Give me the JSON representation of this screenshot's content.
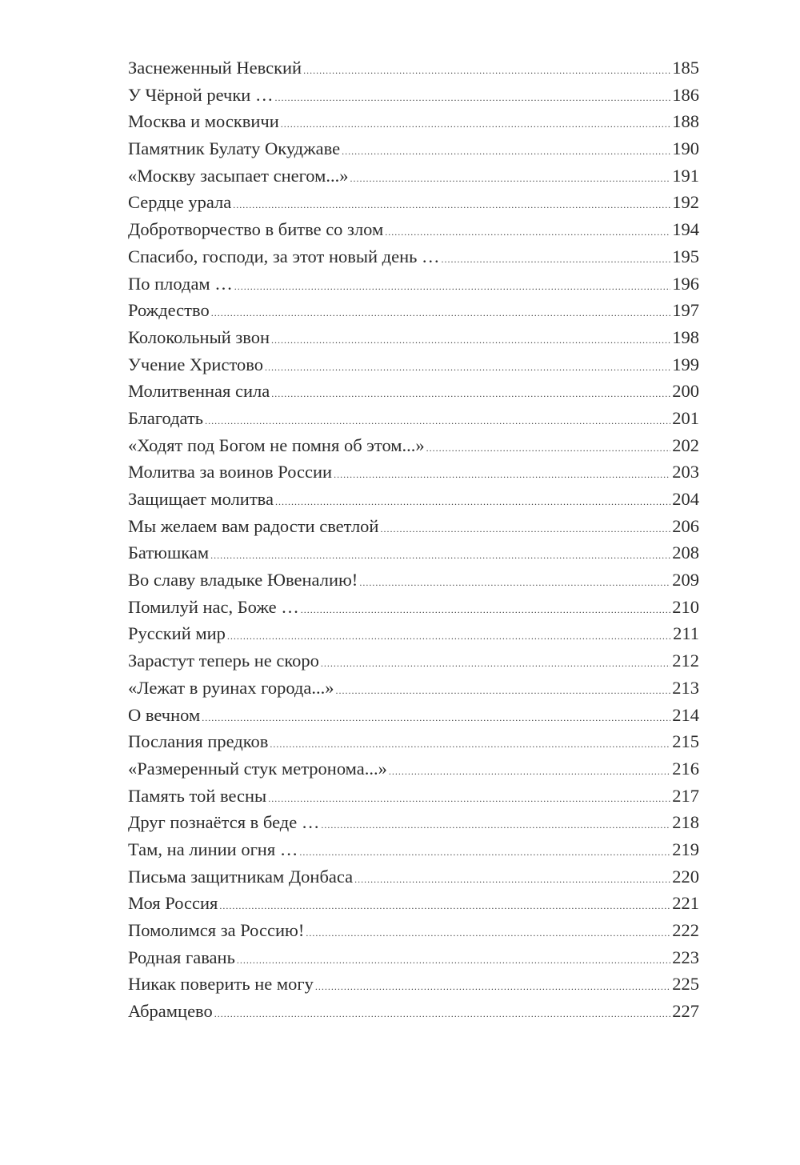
{
  "toc": {
    "entries": [
      {
        "title": "Заснеженный Невский",
        "page": "185"
      },
      {
        "title": "У Чёрной речки …",
        "page": "186"
      },
      {
        "title": "Москва и москвичи",
        "page": "188"
      },
      {
        "title": "Памятник Булату Окуджаве",
        "page": "190"
      },
      {
        "title": "«Москву засыпает снегом...»",
        "page": "191"
      },
      {
        "title": "Сердце урала",
        "page": "192"
      },
      {
        "title": "Добротворчество в битве со злом",
        "page": "194"
      },
      {
        "title": "Спасибо, господи, за этот новый день …",
        "page": "195"
      },
      {
        "title": "По плодам …",
        "page": "196"
      },
      {
        "title": "Рождество",
        "page": "197"
      },
      {
        "title": "Колокольный звон",
        "page": "198"
      },
      {
        "title": "Учение Христово",
        "page": "199"
      },
      {
        "title": "Молитвенная сила",
        "page": "200"
      },
      {
        "title": "Благодать",
        "page": "201"
      },
      {
        "title": "«Ходят под Богом не помня об этом...»",
        "page": "202"
      },
      {
        "title": "Молитва за воинов России",
        "page": "203"
      },
      {
        "title": "Защищает молитва",
        "page": "204"
      },
      {
        "title": "Мы желаем вам радости светлой",
        "page": "206"
      },
      {
        "title": "Батюшкам",
        "page": "208"
      },
      {
        "title": "Во славу владыке Ювеналию!",
        "page": "209"
      },
      {
        "title": "Помилуй нас, Боже …",
        "page": "210"
      },
      {
        "title": "Русский мир",
        "page": "211"
      },
      {
        "title": "Зарастут теперь не скоро",
        "page": "212"
      },
      {
        "title": "«Лежат в руинах города...»",
        "page": "213"
      },
      {
        "title": "О вечном",
        "page": "214"
      },
      {
        "title": "Послания предков",
        "page": "215"
      },
      {
        "title": "«Размеренный стук метронома...»",
        "page": "216"
      },
      {
        "title": "Память той весны",
        "page": "217"
      },
      {
        "title": "Друг познаётся в беде …",
        "page": "218"
      },
      {
        "title": "Там, на линии огня …",
        "page": "219"
      },
      {
        "title": "Письма защитникам Донбаса",
        "page": "220"
      },
      {
        "title": "Моя Россия",
        "page": "221"
      },
      {
        "title": "Помолимся за Россию!",
        "page": "222"
      },
      {
        "title": "Родная гавань",
        "page": "223"
      },
      {
        "title": "Никак поверить не могу",
        "page": "225"
      },
      {
        "title": "Абрамцево",
        "page": "227"
      }
    ]
  }
}
